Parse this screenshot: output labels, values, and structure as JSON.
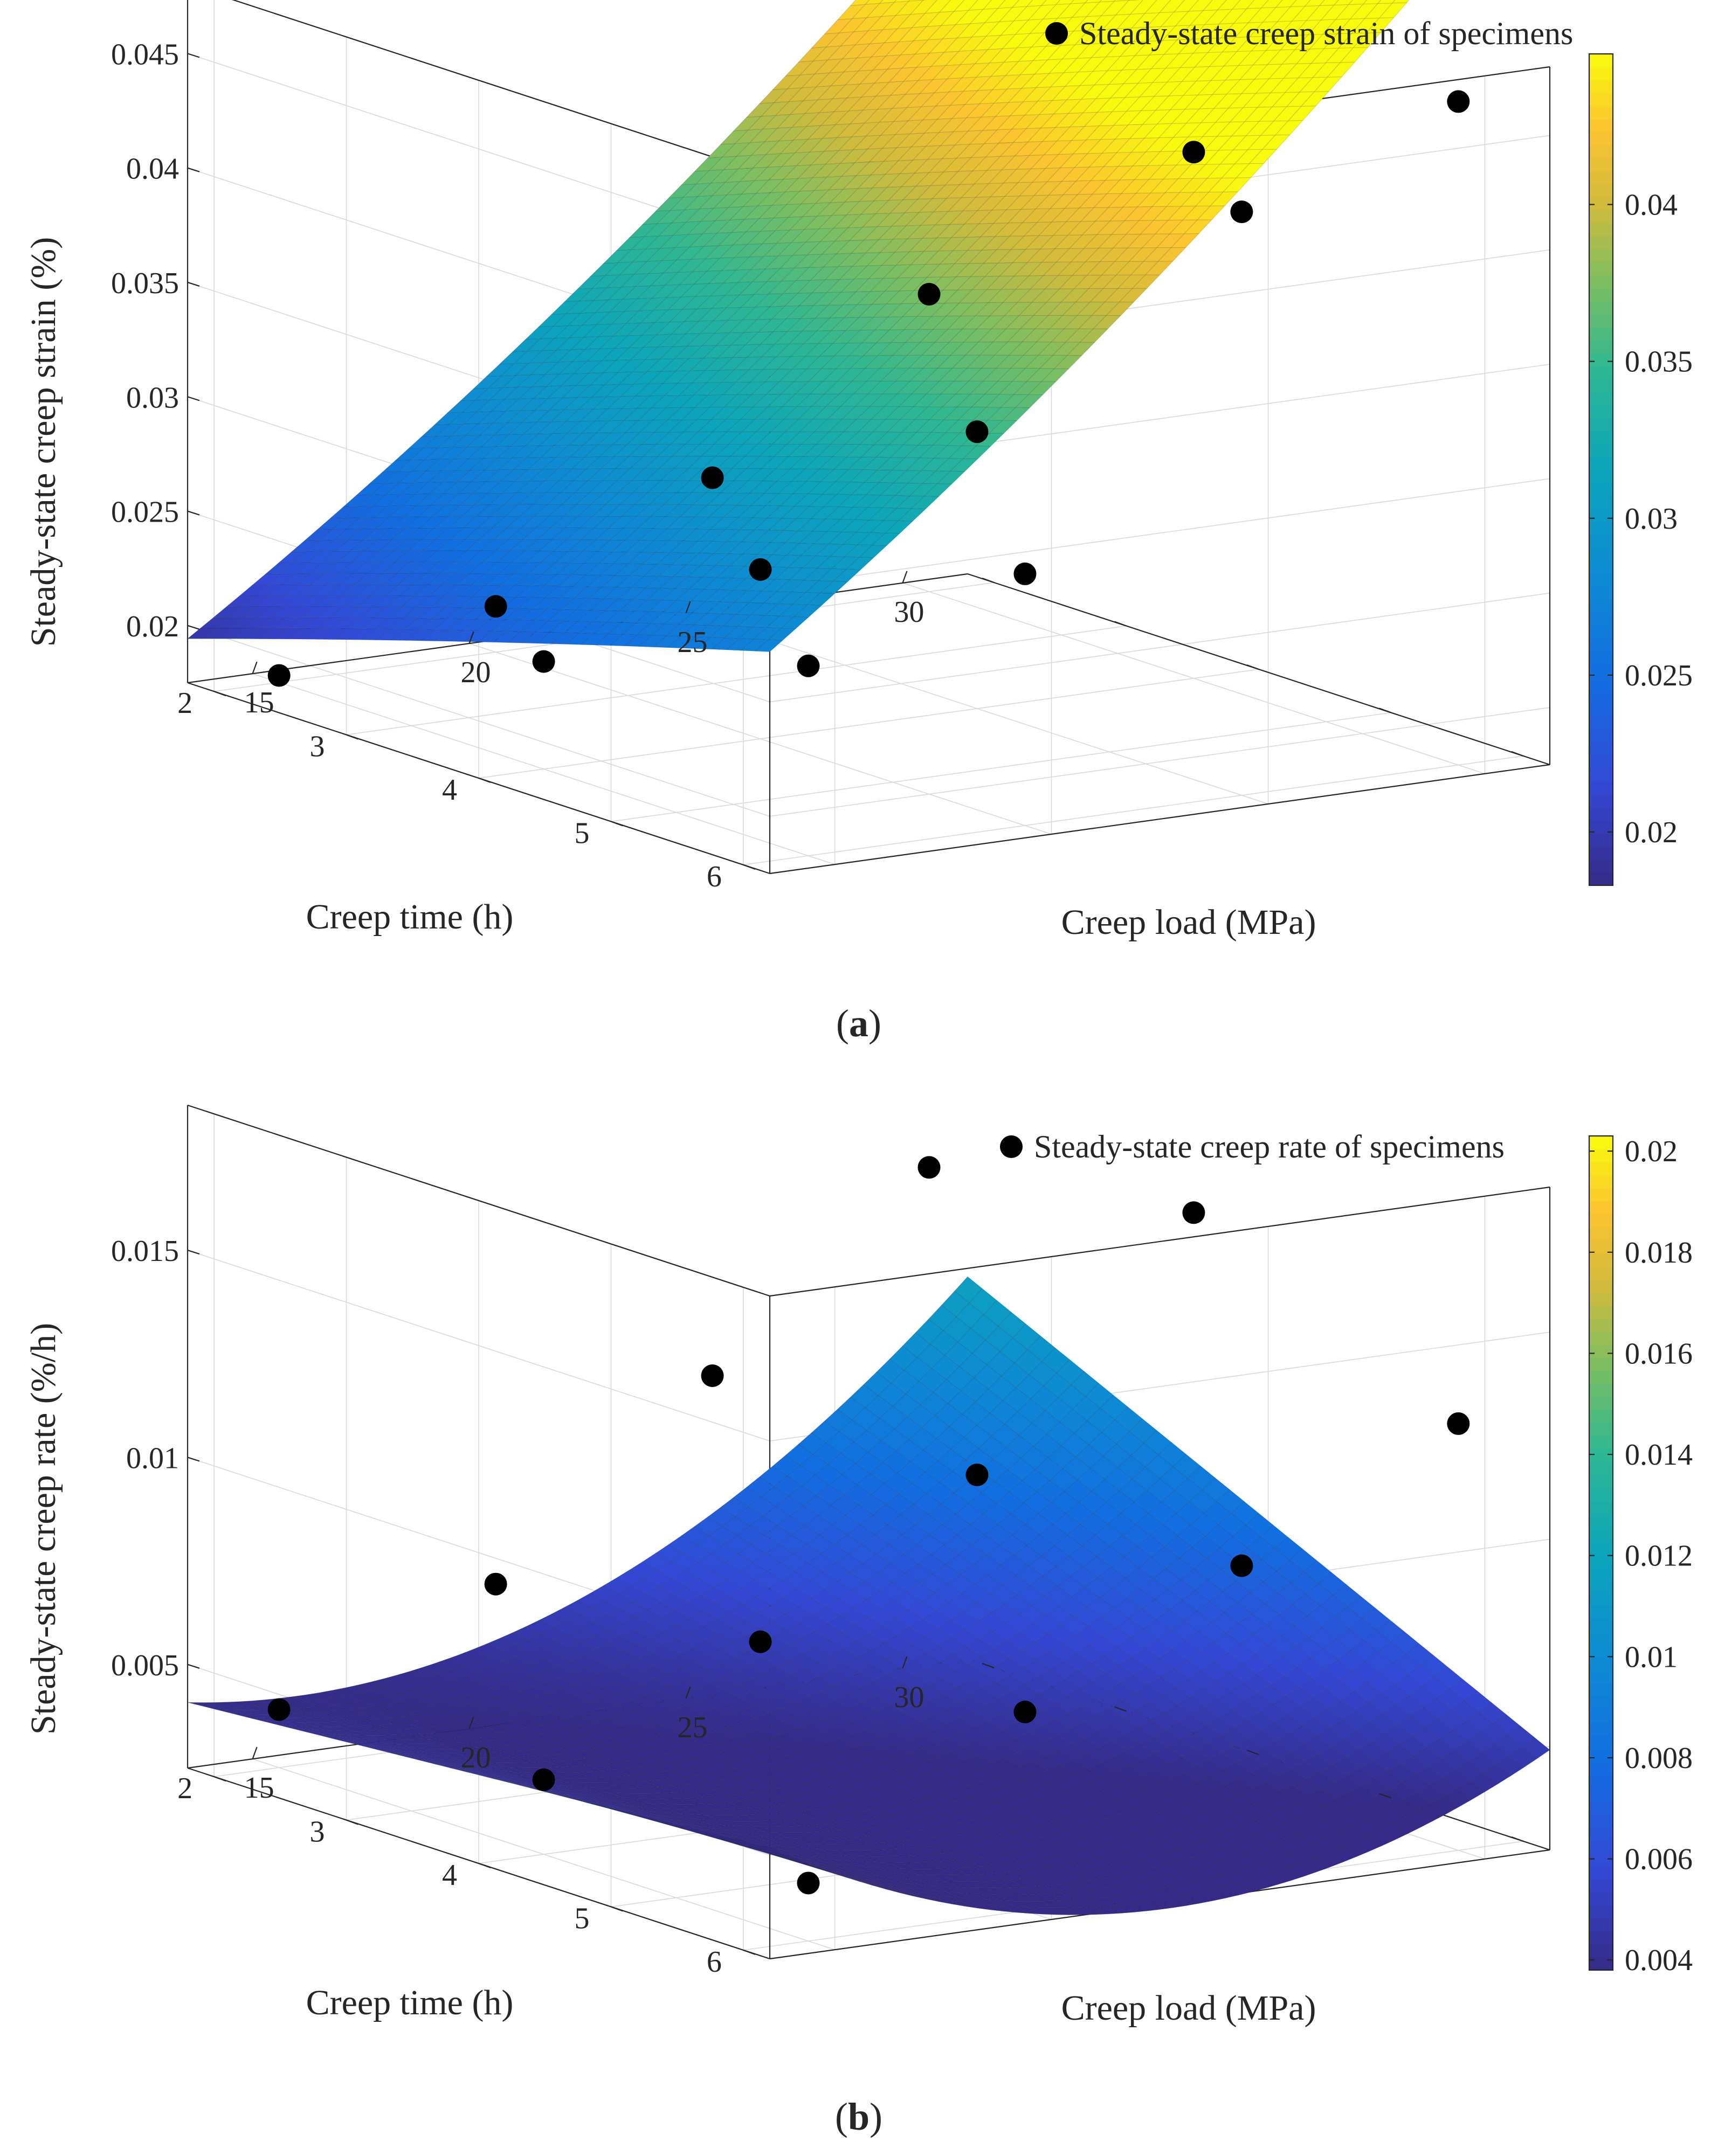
{
  "chart_data": [
    {
      "type": "surface3d",
      "panel": "a",
      "caption": "(a)",
      "caption_letter": "a",
      "legend": "Steady-state creep strain of specimens",
      "xlabel": "Creep load (MPa)",
      "ylabel": "Creep time (h)",
      "zlabel": "Steady-state creep strain (%)",
      "x_range": [
        13.5,
        31.5
      ],
      "y_range": [
        1.8,
        6.2
      ],
      "z_range": [
        0.0175,
        0.048
      ],
      "x_ticks": [
        15,
        20,
        25,
        30
      ],
      "y_ticks": [
        2,
        3,
        4,
        5,
        6
      ],
      "z_ticks": [
        0.02,
        0.025,
        0.03,
        0.035,
        0.04,
        0.045
      ],
      "z_tick_labels": [
        "0.02",
        "0.025",
        "0.03",
        "0.035",
        "0.04",
        "0.045"
      ],
      "colorbar_range": [
        0.0183,
        0.0448
      ],
      "colorbar_ticks": [
        0.02,
        0.025,
        0.03,
        0.035,
        0.04
      ],
      "colorbar_tick_labels": [
        "0.02",
        "0.025",
        "0.03",
        "0.035",
        "0.04"
      ],
      "surface_fit": {
        "a0": 0.0026,
        "a_load": 0.00075,
        "a_time": 0.0016,
        "a_load_time": 3e-05,
        "a_load2": 1.75e-05,
        "a_time2": -3e-05
      },
      "points": [
        {
          "load": 15,
          "time": 2,
          "strain": 0.0178
        },
        {
          "load": 20,
          "time": 2,
          "strain": 0.0195
        },
        {
          "load": 25,
          "time": 2,
          "strain": 0.0238
        },
        {
          "load": 30,
          "time": 2,
          "strain": 0.0305
        },
        {
          "load": 15,
          "time": 4,
          "strain": 0.0222
        },
        {
          "load": 20,
          "time": 4,
          "strain": 0.0249
        },
        {
          "load": 25,
          "time": 4,
          "strain": 0.0296
        },
        {
          "load": 30,
          "time": 4,
          "strain": 0.0405
        },
        {
          "load": 15,
          "time": 6,
          "strain": 0.0258
        },
        {
          "load": 20,
          "time": 6,
          "strain": 0.0285
        },
        {
          "load": 25,
          "time": 6,
          "strain": 0.043
        },
        {
          "load": 30,
          "time": 6,
          "strain": 0.0465
        }
      ]
    },
    {
      "type": "surface3d",
      "panel": "b",
      "caption": "(b)",
      "caption_letter": "b",
      "legend": "Steady-state creep rate of specimens",
      "xlabel": "Creep load (MPa)",
      "ylabel": "Creep time (h)",
      "zlabel": "Steady-state creep rate (%/h)",
      "x_range": [
        13.5,
        31.5
      ],
      "y_range": [
        1.8,
        6.2
      ],
      "z_range": [
        0.0025,
        0.0185
      ],
      "x_ticks": [
        15,
        20,
        25,
        30
      ],
      "y_ticks": [
        2,
        3,
        4,
        5,
        6
      ],
      "z_ticks": [
        0.005,
        0.01,
        0.015
      ],
      "z_tick_labels": [
        "0.005",
        "0.01",
        "0.015"
      ],
      "colorbar_range": [
        0.0038,
        0.0203
      ],
      "colorbar_ticks": [
        0.004,
        0.006,
        0.008,
        0.01,
        0.012,
        0.014,
        0.016,
        0.018,
        0.02
      ],
      "colorbar_tick_labels": [
        "0.004",
        "0.006",
        "0.008",
        "0.01",
        "0.012",
        "0.014",
        "0.016",
        "0.018",
        "0.02"
      ],
      "surface_fit": {
        "a0": 0.0095,
        "a_load": -0.00088,
        "a_time": 0.0016,
        "a_load_time": -0.0001,
        "a_load2": 3.3e-05,
        "a_time2": 0.0
      },
      "points": [
        {
          "load": 15,
          "time": 2,
          "strain": 0.0039
        },
        {
          "load": 20,
          "time": 2,
          "strain": 0.0062
        },
        {
          "load": 25,
          "time": 2,
          "strain": 0.0105
        },
        {
          "load": 30,
          "time": 2,
          "strain": 0.0148
        },
        {
          "load": 15,
          "time": 4,
          "strain": 0.0043
        },
        {
          "load": 20,
          "time": 4,
          "strain": 0.0069
        },
        {
          "load": 25,
          "time": 4,
          "strain": 0.0102
        },
        {
          "load": 30,
          "time": 4,
          "strain": 0.0158
        },
        {
          "load": 15,
          "time": 6,
          "strain": 0.0039
        },
        {
          "load": 20,
          "time": 6,
          "strain": 0.0073
        },
        {
          "load": 25,
          "time": 6,
          "strain": 0.0101
        },
        {
          "load": 30,
          "time": 6,
          "strain": 0.0128
        }
      ]
    }
  ]
}
